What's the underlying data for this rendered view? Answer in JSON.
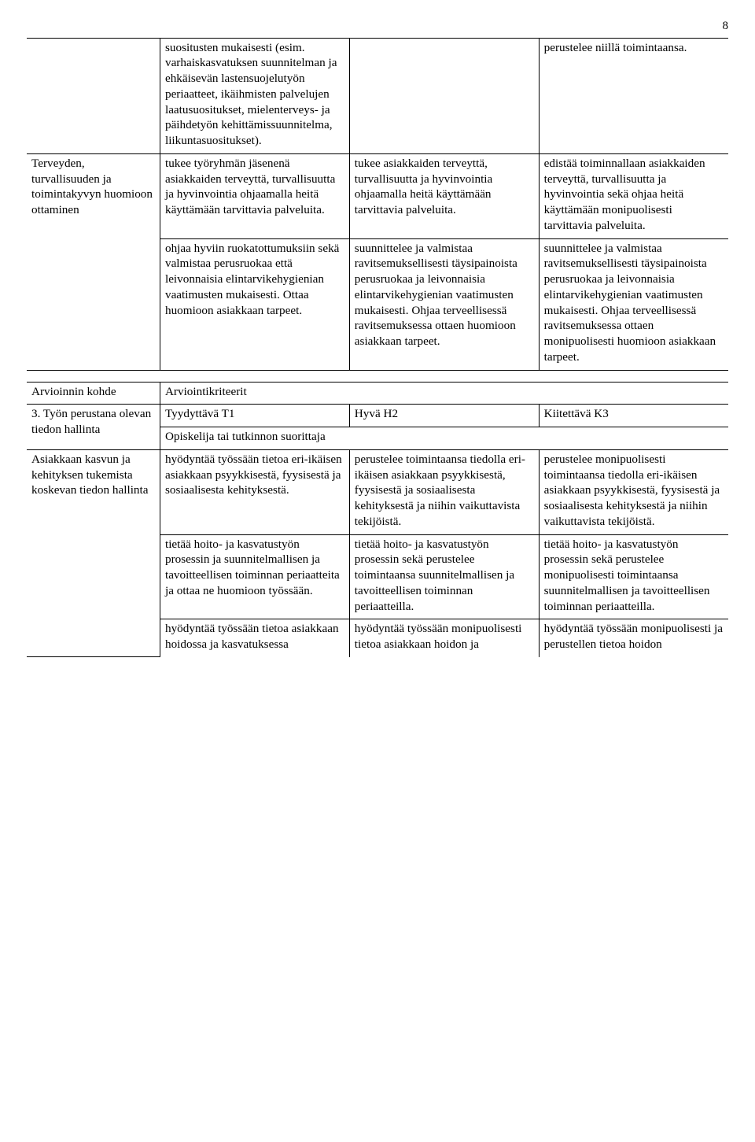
{
  "pagenum": "8",
  "layout": {
    "columns_pct": [
      19,
      27,
      27,
      27
    ]
  },
  "table1": {
    "r1": {
      "c1": "",
      "c2": "suositusten mukaisesti (esim. varhaiskasvatuksen suunnitelman ja ehkäisevän lastensuojelutyön periaatteet, ikäihmisten palvelujen laatusuositukset, mielenterveys- ja päihdetyön kehittämissuunnitelma, liikuntasuositukset).",
      "c3": "",
      "c4": "perustelee niillä toimintaansa."
    },
    "r2": {
      "c1": "Terveyden, turvallisuuden ja toimintakyvyn huomioon ottaminen",
      "c2": "tukee työryhmän jäsenenä asiakkaiden terveyttä, turvallisuutta ja hyvinvointia ohjaamalla heitä käyttämään tarvittavia palveluita.",
      "c3": "tukee asiakkaiden terveyttä, turvallisuutta ja hyvinvointia ohjaamalla heitä käyttämään tarvittavia palveluita.",
      "c4": "edistää toiminnallaan asiakkaiden terveyttä, turvallisuutta ja hyvinvointia sekä ohjaa heitä käyttämään monipuolisesti tarvittavia palveluita."
    },
    "r3": {
      "c2": "ohjaa hyviin ruokatottumuksiin sekä valmistaa perusruokaa että leivonnaisia elintarvikehygienian vaatimusten mukaisesti. Ottaa huomioon asiakkaan tarpeet.",
      "c3": "suunnittelee ja valmistaa ravitsemuksellisesti täysipainoista perusruokaa ja leivonnaisia elintarvikehygienian vaatimusten mukaisesti. Ohjaa terveellisessä ravitsemuksessa ottaen huomioon asiakkaan tarpeet.",
      "c4": "suunnittelee ja valmistaa ravitsemuksellisesti täysipainoista perusruokaa ja leivonnaisia elintarvikehygienian vaatimusten mukaisesti. Ohjaa terveellisessä ravitsemuksessa ottaen monipuolisesti huomioon asiakkaan tarpeet."
    }
  },
  "table2": {
    "h1": {
      "c1": "Arvioinnin kohde",
      "c234": "Arviointikriteerit"
    },
    "h2": {
      "c1": "3. Työn perustana olevan tiedon hallinta",
      "c2": "Tyydyttävä T1",
      "c3": "Hyvä H2",
      "c4": "Kiitettävä K3"
    },
    "h3": {
      "c234": "Opiskelija tai tutkinnon suorittaja"
    },
    "r1": {
      "c1": "Asiakkaan kasvun ja kehityksen tukemista koskevan tiedon hallinta",
      "c2": "hyödyntää työssään tietoa eri-ikäisen asiakkaan psyykkisestä, fyysisestä ja sosiaalisesta kehityksestä.",
      "c3": "perustelee toimintaansa tiedolla eri-ikäisen asiakkaan psyykkisestä, fyysisestä ja sosiaalisesta kehityksestä ja niihin vaikuttavista tekijöistä.",
      "c4": "perustelee monipuolisesti toimintaansa tiedolla eri-ikäisen asiakkaan psyykkisestä, fyysisestä ja sosiaalisesta kehityksestä ja niihin vaikuttavista tekijöistä."
    },
    "r2": {
      "c2": "tietää hoito- ja kasvatustyön prosessin ja suunnitelmallisen ja tavoitteellisen toiminnan periaatteita ja ottaa ne huomioon työssään.",
      "c3": "tietää hoito- ja kasvatustyön prosessin sekä perustelee toimintaansa suunnitelmallisen ja tavoitteellisen toiminnan periaatteilla.",
      "c4": "tietää hoito- ja kasvatustyön prosessin sekä perustelee monipuolisesti toimintaansa suunnitelmallisen ja tavoitteellisen toiminnan periaatteilla."
    },
    "r3": {
      "c2": "hyödyntää työssään tietoa asiakkaan hoidossa ja kasvatuksessa",
      "c3": "hyödyntää työssään monipuolisesti tietoa asiakkaan hoidon ja",
      "c4": "hyödyntää työssään monipuolisesti ja perustellen tietoa hoidon"
    }
  }
}
